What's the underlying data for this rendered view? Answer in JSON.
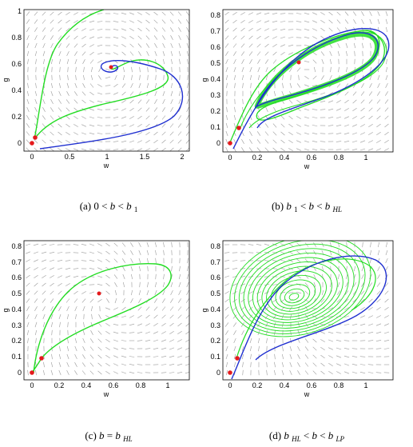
{
  "figure": {
    "colors": {
      "manifold_green": "#22dd22",
      "manifold_blue": "#1f2fd0",
      "equilibrium_red": "#e41a1c",
      "vector_field_gray": "#9a9a9a"
    }
  },
  "panels": [
    {
      "id": "a",
      "caption_prefix": "(a)",
      "caption_parts": [
        {
          "t": "0 < ",
          "i": false
        },
        {
          "t": "b",
          "i": true
        },
        {
          "t": " < ",
          "i": false
        },
        {
          "t": "b",
          "i": true
        }
      ],
      "caption_sub": "1",
      "xlabel": "w",
      "ylabel": "g",
      "xticks": [
        "0",
        "0.5",
        "1",
        "1.5",
        "2"
      ],
      "yticks": [
        "0",
        "0.2",
        "0.4",
        "0.6",
        "0.8",
        "1"
      ]
    },
    {
      "id": "b",
      "caption_prefix": "(b)",
      "caption_parts": [
        {
          "t": "b",
          "i": true
        },
        {
          "t": "1",
          "i": false,
          "sub": true
        },
        {
          "t": " < ",
          "i": false
        },
        {
          "t": "b",
          "i": true
        },
        {
          "t": " < ",
          "i": false
        },
        {
          "t": "b",
          "i": true
        }
      ],
      "caption_sub": "HL",
      "xlabel": "w",
      "ylabel": "g",
      "xticks": [
        "0",
        "0.2",
        "0.4",
        "0.6",
        "0.8",
        "1"
      ],
      "yticks": [
        "0",
        "0.1",
        "0.2",
        "0.3",
        "0.4",
        "0.5",
        "0.6",
        "0.7",
        "0.8"
      ]
    },
    {
      "id": "c",
      "caption_prefix": "(c)",
      "caption_parts": [
        {
          "t": "b",
          "i": true
        },
        {
          "t": " = ",
          "i": false
        },
        {
          "t": "b",
          "i": true
        }
      ],
      "caption_sub": "HL",
      "xlabel": "w",
      "ylabel": "g",
      "xticks": [
        "0",
        "0.2",
        "0.4",
        "0.6",
        "0.8",
        "1"
      ],
      "yticks": [
        "0",
        "0.1",
        "0.2",
        "0.3",
        "0.4",
        "0.5",
        "0.6",
        "0.7",
        "0.8"
      ]
    },
    {
      "id": "d",
      "caption_prefix": "(d)",
      "caption_parts": [
        {
          "t": "b",
          "i": true
        },
        {
          "t": "HL",
          "i": true,
          "sub": true
        },
        {
          "t": " < ",
          "i": false
        },
        {
          "t": "b",
          "i": true
        },
        {
          "t": " < ",
          "i": false
        },
        {
          "t": "b",
          "i": true
        }
      ],
      "caption_sub": "LP",
      "xlabel": "w",
      "ylabel": "g",
      "xticks": [
        "0",
        "0.2",
        "0.4",
        "0.6",
        "0.8",
        "1"
      ],
      "yticks": [
        "0",
        "0.1",
        "0.2",
        "0.3",
        "0.4",
        "0.5",
        "0.6",
        "0.7",
        "0.8"
      ]
    }
  ]
}
